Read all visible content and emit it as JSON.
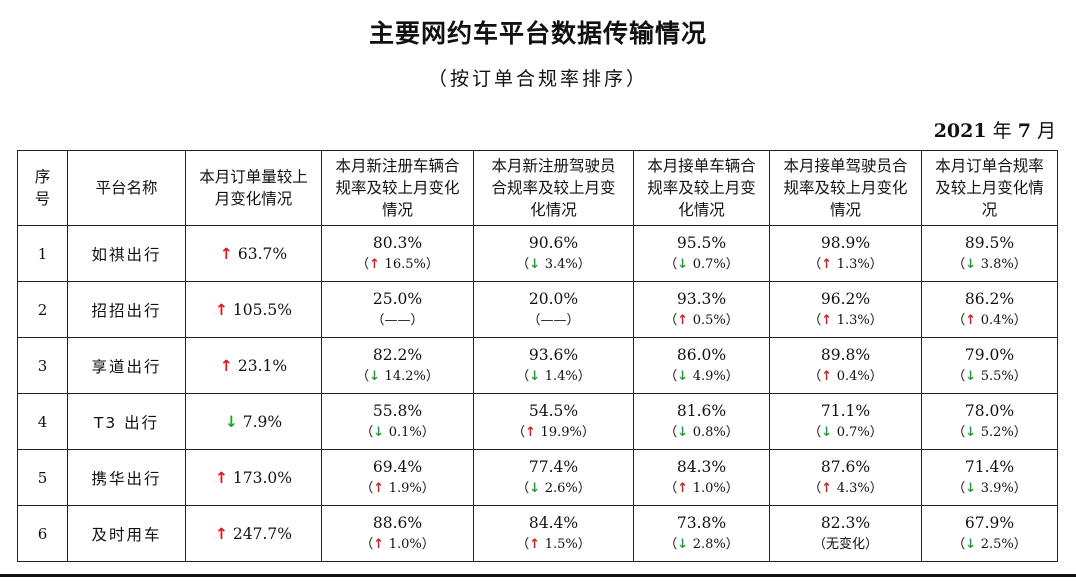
{
  "title": "主要网约车平台数据传输情况",
  "subtitle": "（按订单合规率排序）",
  "date": {
    "year": "2021",
    "year_unit": "年",
    "month": "7",
    "month_unit": "月"
  },
  "colors": {
    "up": "#e01818",
    "down": "#1aa32a"
  },
  "headers": [
    "序号",
    "平台名称",
    "本月订单量较上月变化情况",
    "本月新注册车辆合规率及较上月变化情况",
    "本月新注册驾驶员合规率及较上月变化情况",
    "本月接单车辆合规率及较上月变化情况",
    "本月接单驾驶员合规率及较上月变化情况",
    "本月订单合规率及较上月变化情况"
  ],
  "rows": [
    {
      "idx": "1",
      "name": "如祺出行",
      "orders": {
        "dir": "up",
        "text": "63.7%"
      },
      "metrics": [
        {
          "val": "80.3%",
          "dir": "up",
          "chg": "16.5%"
        },
        {
          "val": "90.6%",
          "dir": "down",
          "chg": "3.4%"
        },
        {
          "val": "95.5%",
          "dir": "down",
          "chg": "0.7%"
        },
        {
          "val": "98.9%",
          "dir": "up",
          "chg": "1.3%"
        },
        {
          "val": "89.5%",
          "dir": "down",
          "chg": "3.8%"
        }
      ]
    },
    {
      "idx": "2",
      "name": "招招出行",
      "orders": {
        "dir": "up",
        "text": "105.5%"
      },
      "metrics": [
        {
          "val": "25.0%",
          "dir": "none",
          "chg": "——"
        },
        {
          "val": "20.0%",
          "dir": "none",
          "chg": "——"
        },
        {
          "val": "93.3%",
          "dir": "up",
          "chg": "0.5%"
        },
        {
          "val": "96.2%",
          "dir": "up",
          "chg": "1.3%"
        },
        {
          "val": "86.2%",
          "dir": "up",
          "chg": "0.4%"
        }
      ]
    },
    {
      "idx": "3",
      "name": "享道出行",
      "orders": {
        "dir": "up",
        "text": "23.1%"
      },
      "metrics": [
        {
          "val": "82.2%",
          "dir": "down",
          "chg": "14.2%"
        },
        {
          "val": "93.6%",
          "dir": "down",
          "chg": "1.4%"
        },
        {
          "val": "86.0%",
          "dir": "down",
          "chg": "4.9%"
        },
        {
          "val": "89.8%",
          "dir": "up",
          "chg": "0.4%"
        },
        {
          "val": "79.0%",
          "dir": "down",
          "chg": "5.5%"
        }
      ]
    },
    {
      "idx": "4",
      "name": "T3 出行",
      "orders": {
        "dir": "down",
        "text": "7.9%"
      },
      "metrics": [
        {
          "val": "55.8%",
          "dir": "down",
          "chg": "0.1%"
        },
        {
          "val": "54.5%",
          "dir": "up",
          "chg": "19.9%"
        },
        {
          "val": "81.6%",
          "dir": "down",
          "chg": "0.8%"
        },
        {
          "val": "71.1%",
          "dir": "down",
          "chg": "0.7%"
        },
        {
          "val": "78.0%",
          "dir": "down",
          "chg": "5.2%"
        }
      ]
    },
    {
      "idx": "5",
      "name": "携华出行",
      "orders": {
        "dir": "up",
        "text": "173.0%"
      },
      "metrics": [
        {
          "val": "69.4%",
          "dir": "up",
          "chg": "1.9%"
        },
        {
          "val": "77.4%",
          "dir": "down",
          "chg": "2.6%"
        },
        {
          "val": "84.3%",
          "dir": "up",
          "chg": "1.0%"
        },
        {
          "val": "87.6%",
          "dir": "up",
          "chg": "4.3%"
        },
        {
          "val": "71.4%",
          "dir": "down",
          "chg": "3.9%"
        }
      ]
    },
    {
      "idx": "6",
      "name": "及时用车",
      "orders": {
        "dir": "up",
        "text": "247.7%"
      },
      "metrics": [
        {
          "val": "88.6%",
          "dir": "up",
          "chg": "1.0%"
        },
        {
          "val": "84.4%",
          "dir": "up",
          "chg": "1.5%"
        },
        {
          "val": "73.8%",
          "dir": "down",
          "chg": "2.8%"
        },
        {
          "val": "82.3%",
          "dir": "none",
          "chg": "无变化"
        },
        {
          "val": "67.9%",
          "dir": "down",
          "chg": "2.5%"
        }
      ]
    }
  ]
}
